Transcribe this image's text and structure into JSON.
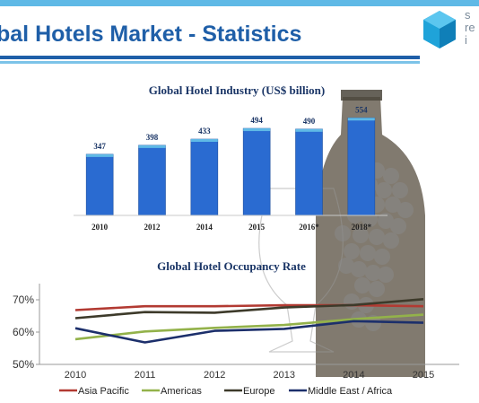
{
  "header": {
    "title": "bal Hotels Market - Statistics",
    "logo_lines": [
      "s",
      "re",
      "i"
    ]
  },
  "colors": {
    "title": "#1f5fa8",
    "bar": "#2a6bd1",
    "accent_bar": "#5fb9e6"
  },
  "chart_data": [
    {
      "type": "bar",
      "title": "Global Hotel Industry (US$ billion)",
      "categories": [
        "2010",
        "2012",
        "2014",
        "2015",
        "2016*",
        "2018*"
      ],
      "values": [
        347,
        398,
        433,
        494,
        490,
        554
      ],
      "ylim": [
        0,
        600
      ],
      "grid": false
    },
    {
      "type": "line",
      "title": "Global Hotel Occupancy Rate",
      "x": [
        "2010",
        "2011",
        "2012",
        "2013",
        "2014",
        "2015"
      ],
      "yticks": [
        "50%",
        "60%",
        "70%"
      ],
      "ylim": [
        50,
        75
      ],
      "legend_position": "bottom",
      "series": [
        {
          "name": "Asia Pacific",
          "color": "#b23a32",
          "values": [
            66.8,
            68.0,
            68.0,
            68.3,
            68.3,
            68.0
          ]
        },
        {
          "name": "Americas",
          "color": "#93b24a",
          "values": [
            57.8,
            60.2,
            61.3,
            62.2,
            64.0,
            65.4
          ]
        },
        {
          "name": "Europe",
          "color": "#3d3a2a",
          "values": [
            64.3,
            66.2,
            66.0,
            67.6,
            68.4,
            70.2
          ]
        },
        {
          "name": "Middle East / Africa",
          "color": "#1c2f6b",
          "values": [
            61.2,
            56.8,
            60.4,
            61.0,
            63.4,
            62.9
          ]
        }
      ]
    }
  ]
}
